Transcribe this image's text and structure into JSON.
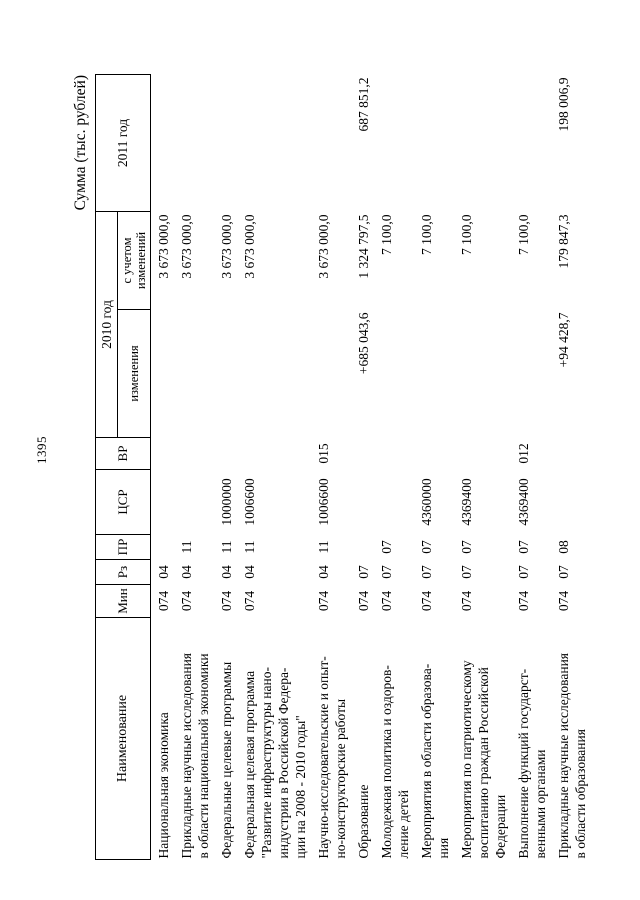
{
  "page": {
    "number": "1395",
    "unit_label": "Сумма (тыс. рублей)"
  },
  "table": {
    "header": {
      "name": "Наименование",
      "min": "Мин",
      "rz": "Рз",
      "pr": "ПР",
      "csr": "ЦСР",
      "vr": "ВР",
      "year2010": "2010 год",
      "changes": "изменения",
      "with_changes": "с учетом\nизменений",
      "year2011": "2011 год"
    },
    "rows": [
      {
        "name": "Национальная экономика",
        "min": "074",
        "rz": "04",
        "pr": "",
        "csr": "",
        "vr": "",
        "changes": "",
        "with_changes": "3 673 000,0",
        "year2011": ""
      },
      {
        "name": "Прикладные научные исследования\nв области национальной экономики",
        "min": "074",
        "rz": "04",
        "pr": "11",
        "csr": "",
        "vr": "",
        "changes": "",
        "with_changes": "3 673 000,0",
        "year2011": ""
      },
      {
        "name": "Федеральные целевые программы",
        "min": "074",
        "rz": "04",
        "pr": "11",
        "csr": "1000000",
        "vr": "",
        "changes": "",
        "with_changes": "3 673 000,0",
        "year2011": ""
      },
      {
        "name": "Федеральная целевая программа\n\"Развитие инфраструктуры нано-\nиндустрии в Российской Федера-\nции на 2008 - 2010 годы\"",
        "min": "074",
        "rz": "04",
        "pr": "11",
        "csr": "1006600",
        "vr": "",
        "changes": "",
        "with_changes": "3 673 000,0",
        "year2011": ""
      },
      {
        "name": "Научно-исследовательские и опыт-\nно-конструкторские работы",
        "min": "074",
        "rz": "04",
        "pr": "11",
        "csr": "1006600",
        "vr": "015",
        "changes": "",
        "with_changes": "3 673 000,0",
        "year2011": ""
      },
      {
        "name": "Образование",
        "min": "074",
        "rz": "07",
        "pr": "",
        "csr": "",
        "vr": "",
        "changes": "+685 043,6",
        "with_changes": "1 324 797,5",
        "year2011": "687 851,2"
      },
      {
        "name": "Молодежная политика и оздоров-\nление детей",
        "min": "074",
        "rz": "07",
        "pr": "07",
        "csr": "",
        "vr": "",
        "changes": "",
        "with_changes": "7 100,0",
        "year2011": ""
      },
      {
        "name": "Мероприятия в области образова-\nния",
        "min": "074",
        "rz": "07",
        "pr": "07",
        "csr": "4360000",
        "vr": "",
        "changes": "",
        "with_changes": "7 100,0",
        "year2011": ""
      },
      {
        "name": "Мероприятия по патриотическому\nвоспитанию граждан Российской\nФедерации",
        "min": "074",
        "rz": "07",
        "pr": "07",
        "csr": "4369400",
        "vr": "",
        "changes": "",
        "with_changes": "7 100,0",
        "year2011": ""
      },
      {
        "name": "Выполнение функций государст-\nвенными органами",
        "min": "074",
        "rz": "07",
        "pr": "07",
        "csr": "4369400",
        "vr": "012",
        "changes": "",
        "with_changes": "7 100,0",
        "year2011": ""
      },
      {
        "name": "Прикладные научные исследования\nв области образования",
        "min": "074",
        "rz": "07",
        "pr": "08",
        "csr": "",
        "vr": "",
        "changes": "+94 428,7",
        "with_changes": "179 847,3",
        "year2011": "198 006,9"
      }
    ]
  }
}
